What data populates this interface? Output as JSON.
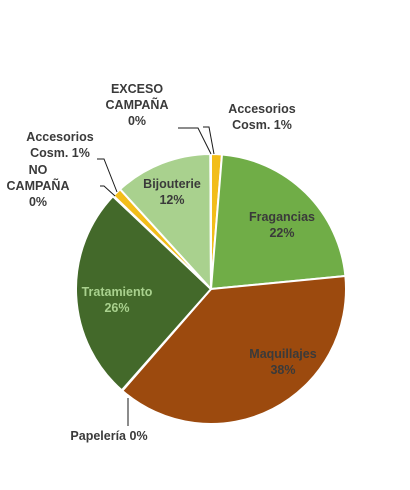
{
  "chart_data": {
    "type": "pie",
    "title": "",
    "slices": [
      {
        "label": "Accesorios Cosm.",
        "pct_label": "1%",
        "value": 1.3,
        "color": "#f2bd1a",
        "text_color": "#3a3a3a"
      },
      {
        "label": "Fragancias",
        "pct_label": "22%",
        "value": 22.2,
        "color": "#70ad47",
        "text_color": "#3a3a3a"
      },
      {
        "label": "Maquillajes",
        "pct_label": "38%",
        "value": 38.0,
        "color": "#9c4a0e",
        "text_color": "#3a3a3a"
      },
      {
        "label": "Papelería",
        "pct_label": "0%",
        "value": 0.08,
        "color": "#6e3a10",
        "text_color": "#3a3a3a"
      },
      {
        "label": "Tratamiento",
        "pct_label": "26%",
        "value": 25.6,
        "color": "#43692a",
        "text_color": "#a9d18e"
      },
      {
        "label": "NO CAMPAÑA",
        "pct_label": "0%",
        "value": 0.08,
        "color": "#5a5a5a",
        "text_color": "#3a3a3a"
      },
      {
        "label": "Accesorios Cosm.",
        "pct_label": "1%",
        "value": 1.1,
        "color": "#f2bd1a",
        "text_color": "#3a3a3a"
      },
      {
        "label": "Bijouterie",
        "pct_label": "12%",
        "value": 11.7,
        "color": "#a9d18e",
        "text_color": "#3a3a3a"
      },
      {
        "label": "EXCESO CAMPAÑA",
        "pct_label": "0%",
        "value": 0.08,
        "color": "#5a5a5a",
        "text_color": "#3a3a3a"
      }
    ],
    "data_labels": [
      {
        "lines": [
          "Accesorios",
          "Cosm. 1%"
        ]
      },
      {
        "lines": [
          "Fragancias",
          "22%"
        ]
      },
      {
        "lines": [
          "Maquillajes",
          "38%"
        ]
      },
      {
        "lines": [
          "Papelería 0%"
        ]
      },
      {
        "lines": [
          "Tratamiento",
          "26%"
        ]
      },
      {
        "lines": [
          "NO",
          "CAMPAÑA",
          "0%"
        ]
      },
      {
        "lines": [
          "Accesorios",
          "Cosm. 1%"
        ]
      },
      {
        "lines": [
          "Bijouterie",
          "12%"
        ]
      },
      {
        "lines": [
          "EXCESO",
          "CAMPAÑA",
          "0%"
        ]
      }
    ],
    "legend": "none",
    "start_angle_deg": 0,
    "direction": "clockwise"
  }
}
